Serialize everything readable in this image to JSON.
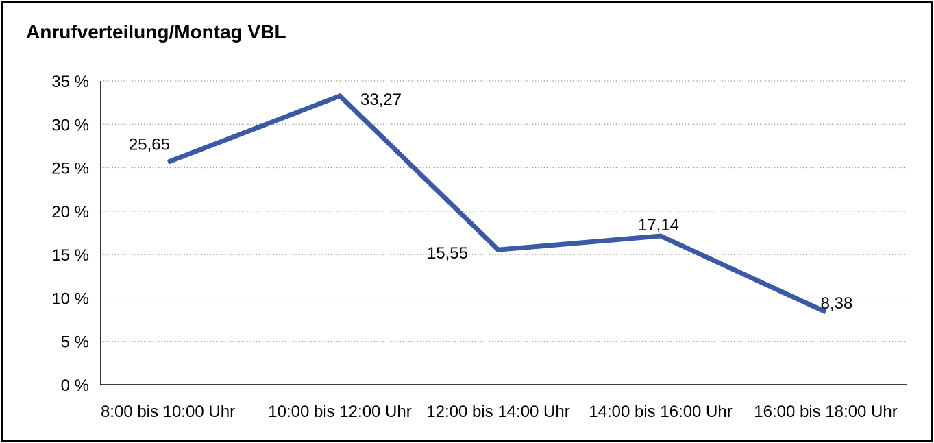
{
  "chart_data": {
    "type": "line",
    "title": "Anrufverteilung/Montag VBL",
    "categories": [
      "8:00 bis 10:00 Uhr",
      "10:00 bis 12:00 Uhr",
      "12:00 bis 14:00 Uhr",
      "14:00 bis 16:00 Uhr",
      "16:00 bis 18:00 Uhr"
    ],
    "values": [
      25.65,
      33.27,
      15.55,
      17.14,
      8.38
    ],
    "value_labels": [
      "25,65",
      "33,27",
      "15,55",
      "17,14",
      "8,38"
    ],
    "xlabel": "",
    "ylabel": "",
    "ylim": [
      0,
      35
    ],
    "y_tick_step": 5,
    "y_tick_labels": [
      "0 %",
      "5 %",
      "10 %",
      "15 %",
      "20 %",
      "25 %",
      "30 %",
      "35 %"
    ],
    "grid": "horizontal-dotted",
    "legend_position": "none",
    "line_color": "#3B5AA6",
    "text_color": "#000000",
    "gridline_color": "#8C8C8C",
    "axis_color": "#000000",
    "background_color": "#FFFFFF",
    "frame_border_color": "#000000"
  }
}
